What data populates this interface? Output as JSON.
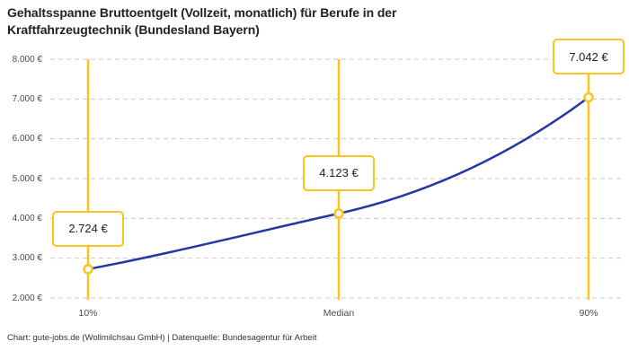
{
  "header": {
    "title": "Gehaltsspanne Bruttoentgelt (Vollzeit, monatlich) für Berufe in der Kraftfahrzeugtechnik (Bundesland Bayern)"
  },
  "footer": {
    "text": "Chart: gute-jobs.de (Wollmilchsau GmbH) | Datenquelle: Bundesagentur für Arbeit"
  },
  "chart_data": {
    "type": "line",
    "title": "Gehaltsspanne Bruttoentgelt (Vollzeit, monatlich) für Berufe in der Kraftfahrzeugtechnik (Bundesland Bayern)",
    "categories": [
      "10%",
      "Median",
      "90%"
    ],
    "values": [
      2724,
      4123,
      7042
    ],
    "value_labels": [
      "2.724 €",
      "4.123 €",
      "7.042 €"
    ],
    "xlabel": "",
    "ylabel": "",
    "ylim": [
      2000,
      8000
    ],
    "yticks": [
      8000,
      7000,
      6000,
      5000,
      4000,
      3000,
      2000
    ],
    "ytick_labels": [
      "8.000 €",
      "7.000 €",
      "6.000 €",
      "5.000 €",
      "4.000 €",
      "3.000 €",
      "2.000 €"
    ],
    "grid": "horizontal-dashed",
    "legend": "none",
    "colors": {
      "line": "#2138a5",
      "marker": "#fcc41d",
      "grid": "#c9c9c9",
      "axis_text": "#4b4b4b",
      "title_text": "#222222"
    }
  }
}
